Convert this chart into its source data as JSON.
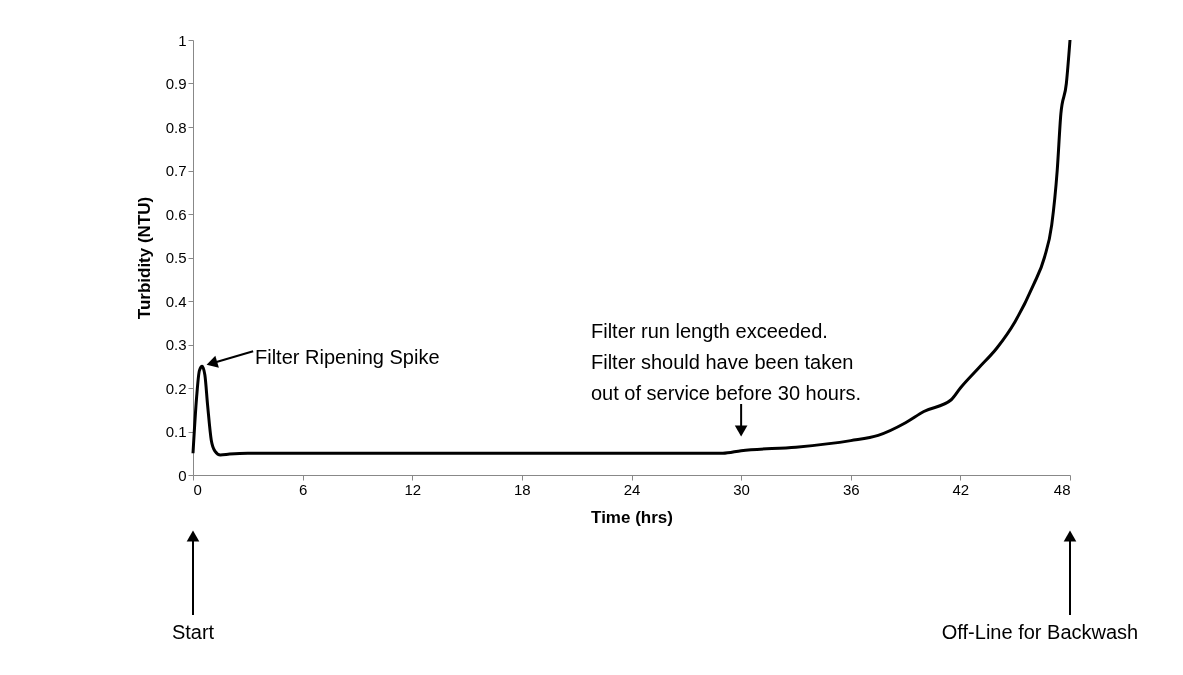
{
  "chart_data": {
    "type": "line",
    "xlabel": "Time (hrs)",
    "ylabel": "Turbidity (NTU)",
    "x": [
      0,
      0.2,
      0.35,
      0.5,
      0.65,
      0.8,
      1.0,
      1.2,
      1.5,
      2,
      3,
      6,
      12,
      18,
      24,
      29,
      30,
      33,
      36,
      37.5,
      39,
      40,
      41.5,
      42,
      43,
      44,
      45,
      46,
      46.6,
      47,
      47.3,
      47.5,
      47.8,
      48
    ],
    "series": [
      {
        "color": "#000000",
        "values": [
          0.05,
          0.18,
          0.24,
          0.25,
          0.23,
          0.16,
          0.08,
          0.055,
          0.046,
          0.048,
          0.05,
          0.05,
          0.05,
          0.05,
          0.05,
          0.05,
          0.056,
          0.064,
          0.079,
          0.091,
          0.12,
          0.146,
          0.173,
          0.2,
          0.246,
          0.292,
          0.353,
          0.437,
          0.5,
          0.575,
          0.7,
          0.83,
          0.9,
          1.0
        ]
      }
    ],
    "xlim": [
      0,
      48
    ],
    "xticks": [
      0,
      6,
      12,
      18,
      24,
      30,
      36,
      42,
      48
    ],
    "ylim": [
      0,
      1
    ],
    "yticks": [
      0,
      0.1,
      0.2,
      0.3,
      0.4,
      0.5,
      0.6,
      0.7,
      0.8,
      0.9,
      1
    ],
    "grid": false,
    "marker": "none",
    "line_style": "solid",
    "annotations": [
      {
        "text": "Filter Ripening Spike",
        "x": 0.5,
        "y": 0.25
      },
      {
        "text": "Filter run length exceeded.\nFilter should have been taken\nout of service before 30 hours.",
        "x": 30,
        "y": 0.056
      },
      "Start",
      "Off-Line for Backwash"
    ]
  }
}
